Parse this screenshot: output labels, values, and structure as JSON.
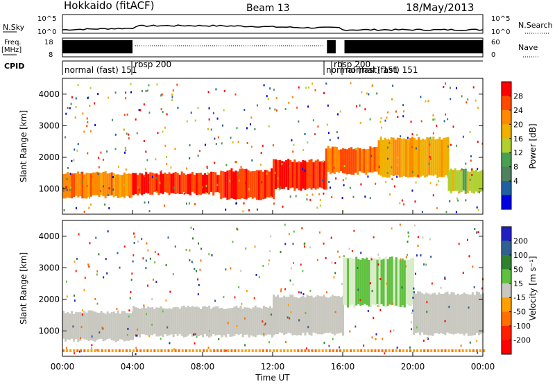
{
  "header": {
    "site": "Hokkaido (fitACF)",
    "beam": "Beam 13",
    "date": "18/May/2013"
  },
  "top_panels": {
    "nsky": {
      "label": "N.Sky",
      "axis_labels": [
        "10^5",
        "10^0"
      ]
    },
    "nsearch": {
      "label": "N.Search",
      "axis_labels": [
        "10^5",
        "10^0"
      ]
    },
    "freq": {
      "label_line1": "Freq.",
      "label_line2": "[MHz]",
      "axis_labels": [
        "18",
        "8"
      ]
    },
    "nave": {
      "label": "Nave",
      "axis_labels": [
        "60",
        "0"
      ]
    },
    "cpid": {
      "label": "CPID",
      "segments": [
        {
          "text": "normal (fast) 151",
          "start_hour": 0.0
        },
        {
          "text": "rbsp 200",
          "start_hour": 3.95
        },
        {
          "text": "normal (fast) 151",
          "start_hour": 15.0
        },
        {
          "text": "rbsp 200",
          "start_hour": 15.4
        },
        {
          "text": "normal (fast) 151",
          "start_hour": 16.2
        }
      ]
    }
  },
  "x_axis": {
    "label": "Time UT",
    "ticks": [
      "00:00",
      "04:00",
      "08:00",
      "12:00",
      "16:00",
      "20:00",
      "00:00"
    ]
  },
  "power_panel": {
    "ylabel": "Slant Range [km]",
    "yticks": [
      "1000",
      "2000",
      "3000",
      "4000"
    ],
    "colorbar_label": "Power [dB]",
    "colorbar_ticks": [
      "28",
      "24",
      "20",
      "16",
      "12",
      "8",
      "4"
    ],
    "colors": [
      "#ff0000",
      "#ff4a00",
      "#ff8a00",
      "#f0b000",
      "#b0d030",
      "#4aa050",
      "#508060",
      "#2060a0",
      "#0000e0"
    ]
  },
  "velocity_panel": {
    "ylabel": "Slant Range [km]",
    "yticks": [
      "1000",
      "2000",
      "3000",
      "4000"
    ],
    "colorbar_label": "Velocity [m s⁻¹]",
    "colorbar_ticks": [
      "200",
      "100",
      "50",
      "15",
      "-15",
      "-50",
      "-100",
      "-200"
    ],
    "colors": [
      "#2020c0",
      "#306090",
      "#308030",
      "#60c040",
      "#c8c8c0",
      "#ffa000",
      "#ff7000",
      "#ff2000",
      "#ff0000"
    ]
  },
  "chart_data": {
    "type": "heatmap",
    "x_unit": "hour UT",
    "xlim": [
      0,
      24
    ],
    "ylim": [
      200,
      4500
    ],
    "power_bands": [
      {
        "start_hour": 0,
        "end_hour": 4,
        "range_low": 750,
        "range_high": 1500,
        "level_db": 24
      },
      {
        "start_hour": 4,
        "end_hour": 9,
        "range_low": 850,
        "range_high": 1500,
        "level_db": 28
      },
      {
        "start_hour": 9,
        "end_hour": 12,
        "range_low": 700,
        "range_high": 1600,
        "level_db": 28
      },
      {
        "start_hour": 12,
        "end_hour": 15,
        "range_low": 1000,
        "range_high": 1900,
        "level_db": 28
      },
      {
        "start_hour": 15,
        "end_hour": 18,
        "range_low": 1500,
        "range_high": 2300,
        "level_db": 26
      },
      {
        "start_hour": 18,
        "end_hour": 22,
        "range_low": 1400,
        "range_high": 2600,
        "level_db": 22
      },
      {
        "start_hour": 22,
        "end_hour": 24,
        "range_low": 900,
        "range_high": 1600,
        "level_db": 18
      }
    ],
    "velocity_bands": [
      {
        "start_hour": 0,
        "end_hour": 4,
        "range_low": 700,
        "range_high": 1600,
        "velocity": 0
      },
      {
        "start_hour": 4,
        "end_hour": 12,
        "range_low": 850,
        "range_high": 1750,
        "velocity": 0
      },
      {
        "start_hour": 12,
        "end_hour": 16,
        "range_low": 900,
        "range_high": 2100,
        "velocity": 0
      },
      {
        "start_hour": 16,
        "end_hour": 20,
        "range_low": 1800,
        "range_high": 3300,
        "velocity": 25
      },
      {
        "start_hour": 20,
        "end_hour": 24,
        "range_low": 900,
        "range_high": 2200,
        "velocity": 0
      }
    ]
  }
}
